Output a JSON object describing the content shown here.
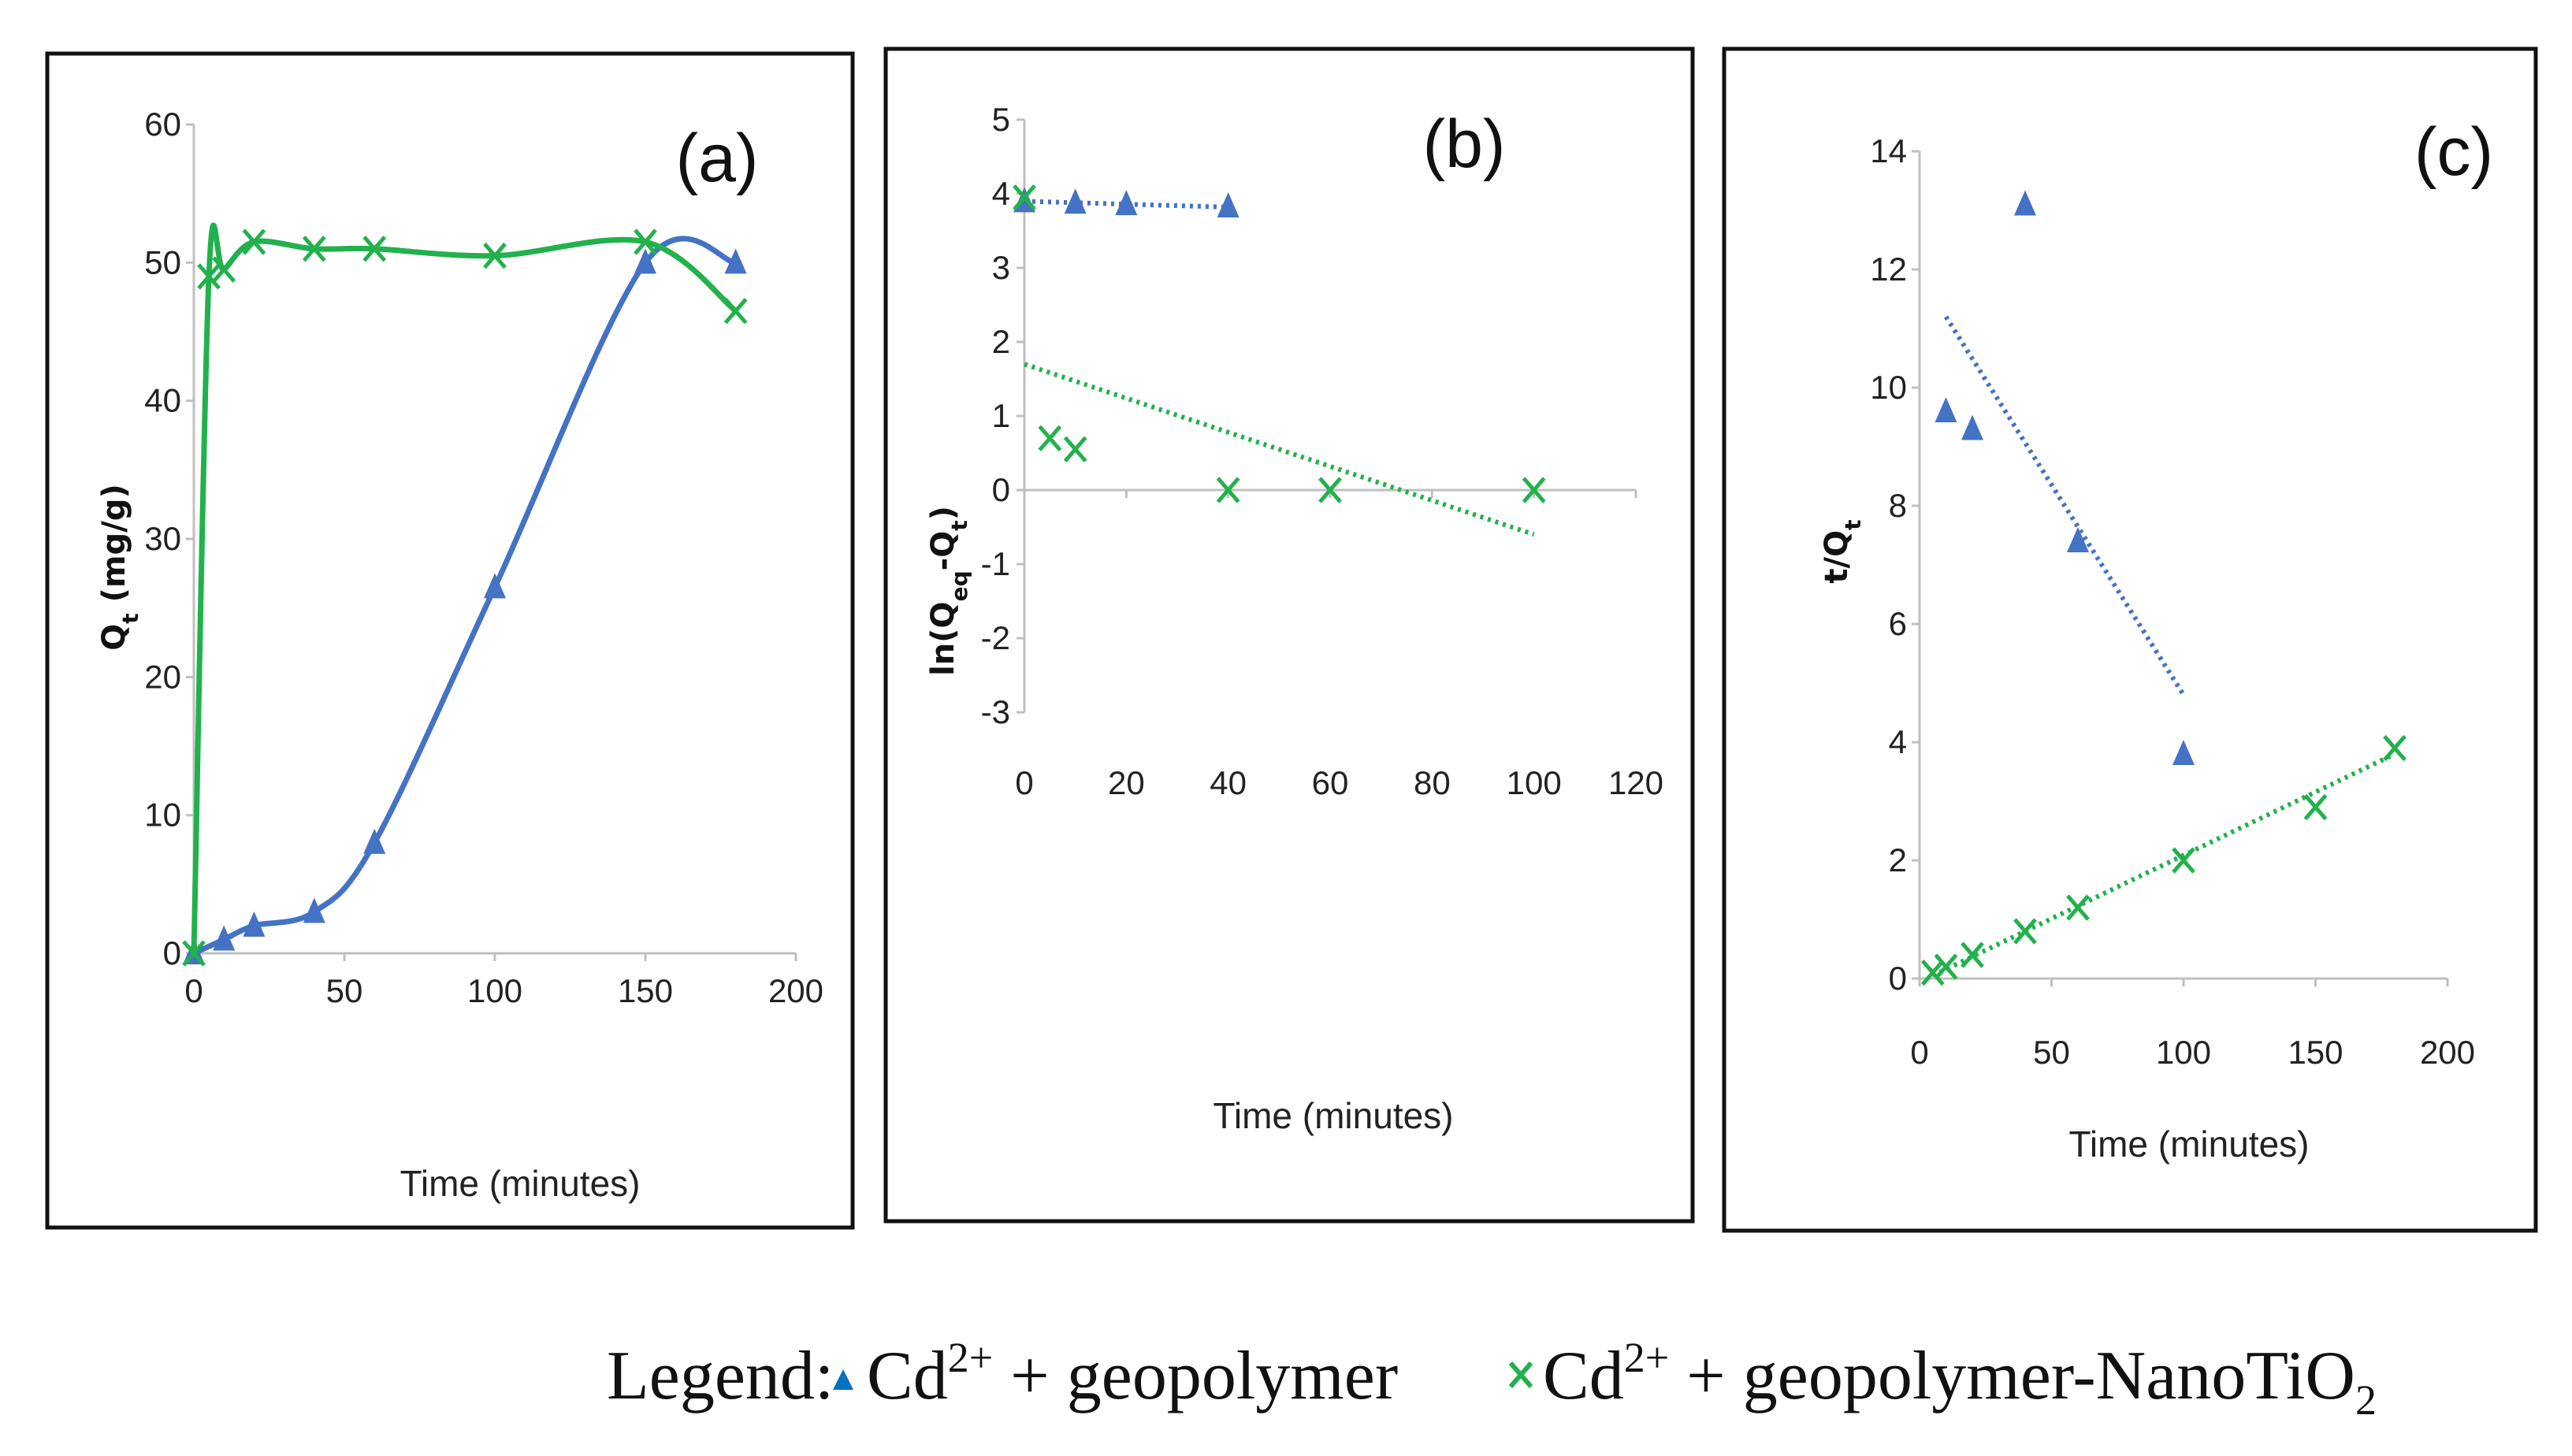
{
  "colors": {
    "blue": "#4472C4",
    "green": "#22B14C",
    "axis": "#BFBFBF",
    "frame": "#111111"
  },
  "legend": {
    "prefix": "Legend:",
    "items": [
      {
        "series": "geopolymer",
        "marker": "triangle",
        "ion": "Cd",
        "charge": "2+",
        "text": " + geopolymer"
      },
      {
        "series": "nano",
        "marker": "cross",
        "ion": "Cd",
        "charge": "2+",
        "text": " + geopolymer-NanoTiO",
        "sub": "2"
      }
    ]
  },
  "chart_data": [
    {
      "id": "a",
      "panel_label": "(a)",
      "type": "line",
      "xlabel": "Time (minutes)",
      "ylabel_main": "Q",
      "ylabel_sub": "t",
      "ylabel_tail": " (mg/g)",
      "xlim": [
        0,
        200
      ],
      "ylim": [
        0,
        60
      ],
      "xticks": [
        0,
        50,
        100,
        150,
        200
      ],
      "yticks": [
        0,
        10,
        20,
        30,
        40,
        50,
        60
      ],
      "series": [
        {
          "name": "Cd2+ + geopolymer",
          "color": "blue",
          "marker": "triangle",
          "smooth": true,
          "x": [
            0,
            10,
            20,
            40,
            60,
            100,
            150,
            180
          ],
          "y": [
            0,
            1,
            2,
            3,
            8,
            26.5,
            50,
            50
          ]
        },
        {
          "name": "Cd2+ + geopolymer-NanoTiO2",
          "color": "green",
          "marker": "cross",
          "smooth": true,
          "x": [
            0,
            5,
            10,
            20,
            40,
            60,
            100,
            150,
            180
          ],
          "y": [
            0,
            49,
            49.5,
            51.5,
            51,
            51,
            50.5,
            51.5,
            46.5
          ]
        }
      ]
    },
    {
      "id": "b",
      "panel_label": "(b)",
      "type": "scatter",
      "xlabel": "Time (minutes)",
      "ylabel_main": "ln(Q",
      "ylabel_sub": "eq",
      "ylabel_tail": "-Q",
      "ylabel_sub2": "t",
      "ylabel_end": ")",
      "xlim": [
        0,
        120
      ],
      "ylim": [
        -3,
        5
      ],
      "xticks": [
        0,
        20,
        40,
        60,
        80,
        100,
        120
      ],
      "yticks": [
        -3,
        -2,
        -1,
        0,
        1,
        2,
        3,
        4,
        5
      ],
      "series": [
        {
          "name": "Cd2+ + geopolymer",
          "color": "blue",
          "marker": "triangle",
          "x": [
            0,
            10,
            20,
            40
          ],
          "y": [
            3.9,
            3.88,
            3.86,
            3.83
          ],
          "trend": {
            "x0": 0,
            "y0": 3.9,
            "x1": 40,
            "y1": 3.82
          }
        },
        {
          "name": "Cd2+ + geopolymer-NanoTiO2",
          "color": "green",
          "marker": "cross",
          "x": [
            0,
            5,
            10,
            40,
            60,
            100
          ],
          "y": [
            3.95,
            0.7,
            0.55,
            0,
            0,
            0
          ],
          "trend": {
            "x0": 0,
            "y0": 1.7,
            "x1": 100,
            "y1": -0.6
          }
        }
      ]
    },
    {
      "id": "c",
      "panel_label": "(c)",
      "type": "scatter",
      "xlabel": "Time (minutes)",
      "ylabel_main": "t/Q",
      "ylabel_sub": "t",
      "ylabel_tail": "",
      "xlim": [
        0,
        200
      ],
      "ylim": [
        0,
        14
      ],
      "xticks": [
        0,
        50,
        100,
        150,
        200
      ],
      "yticks": [
        0,
        2,
        4,
        6,
        8,
        10,
        12,
        14
      ],
      "series": [
        {
          "name": "Cd2+ + geopolymer",
          "color": "blue",
          "marker": "triangle",
          "x": [
            10,
            20,
            40,
            60,
            100
          ],
          "y": [
            9.6,
            9.3,
            13.1,
            7.4,
            3.8
          ],
          "trend": {
            "x0": 10,
            "y0": 11.2,
            "x1": 100,
            "y1": 4.8
          }
        },
        {
          "name": "Cd2+ + geopolymer-NanoTiO2",
          "color": "green",
          "marker": "cross",
          "x": [
            5,
            10,
            20,
            40,
            60,
            100,
            150,
            180
          ],
          "y": [
            0.1,
            0.2,
            0.4,
            0.8,
            1.2,
            2.0,
            2.9,
            3.9
          ],
          "trend": {
            "x0": 5,
            "y0": 0.05,
            "x1": 180,
            "y1": 3.8
          }
        }
      ]
    }
  ]
}
